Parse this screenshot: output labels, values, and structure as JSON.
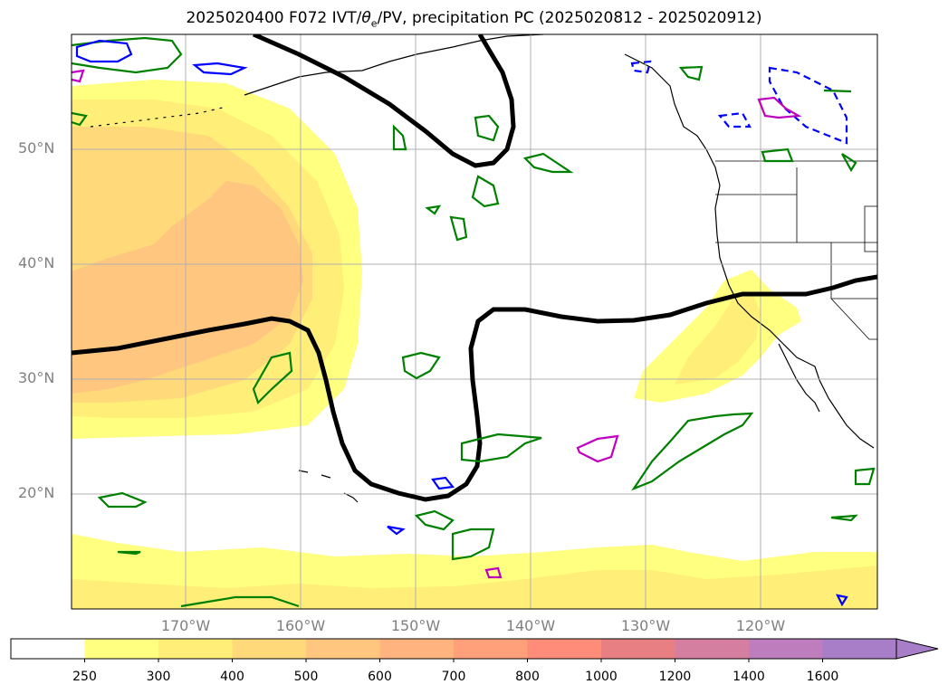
{
  "title": {
    "main": "2025020400 F072 IVT/",
    "theta_sym": "θ",
    "theta_sub": "e",
    "rest": "/PV, precipitation PC (2025020812 - 2025020912)"
  },
  "map": {
    "lat_labels": [
      "50°N",
      "40°N",
      "30°N",
      "20°N"
    ],
    "lon_labels": [
      "170°W",
      "160°W",
      "150°W",
      "140°W",
      "130°W",
      "120°W"
    ],
    "colors": {
      "ivt_250": "#ffff80",
      "ivt_300": "#ffee77",
      "ivt_400": "#ffd97a",
      "ivt_500": "#ffc680",
      "pv_contour": "#000000",
      "precip_green": "#008000",
      "precip_blue": "#0000ff",
      "precip_magenta": "#c000c0",
      "grid": "#b0b0b0",
      "coast": "#000000"
    }
  },
  "colorbar": {
    "levels": [
      "250",
      "300",
      "400",
      "500",
      "600",
      "700",
      "800",
      "1000",
      "1200",
      "1400",
      "1600"
    ],
    "colors": [
      "#ffffff",
      "#ffff80",
      "#ffee77",
      "#ffd97a",
      "#ffc680",
      "#ffb480",
      "#ffa07a",
      "#ff8c78",
      "#e87f82",
      "#d47ea0",
      "#be7ebe",
      "#a87ec8"
    ]
  }
}
